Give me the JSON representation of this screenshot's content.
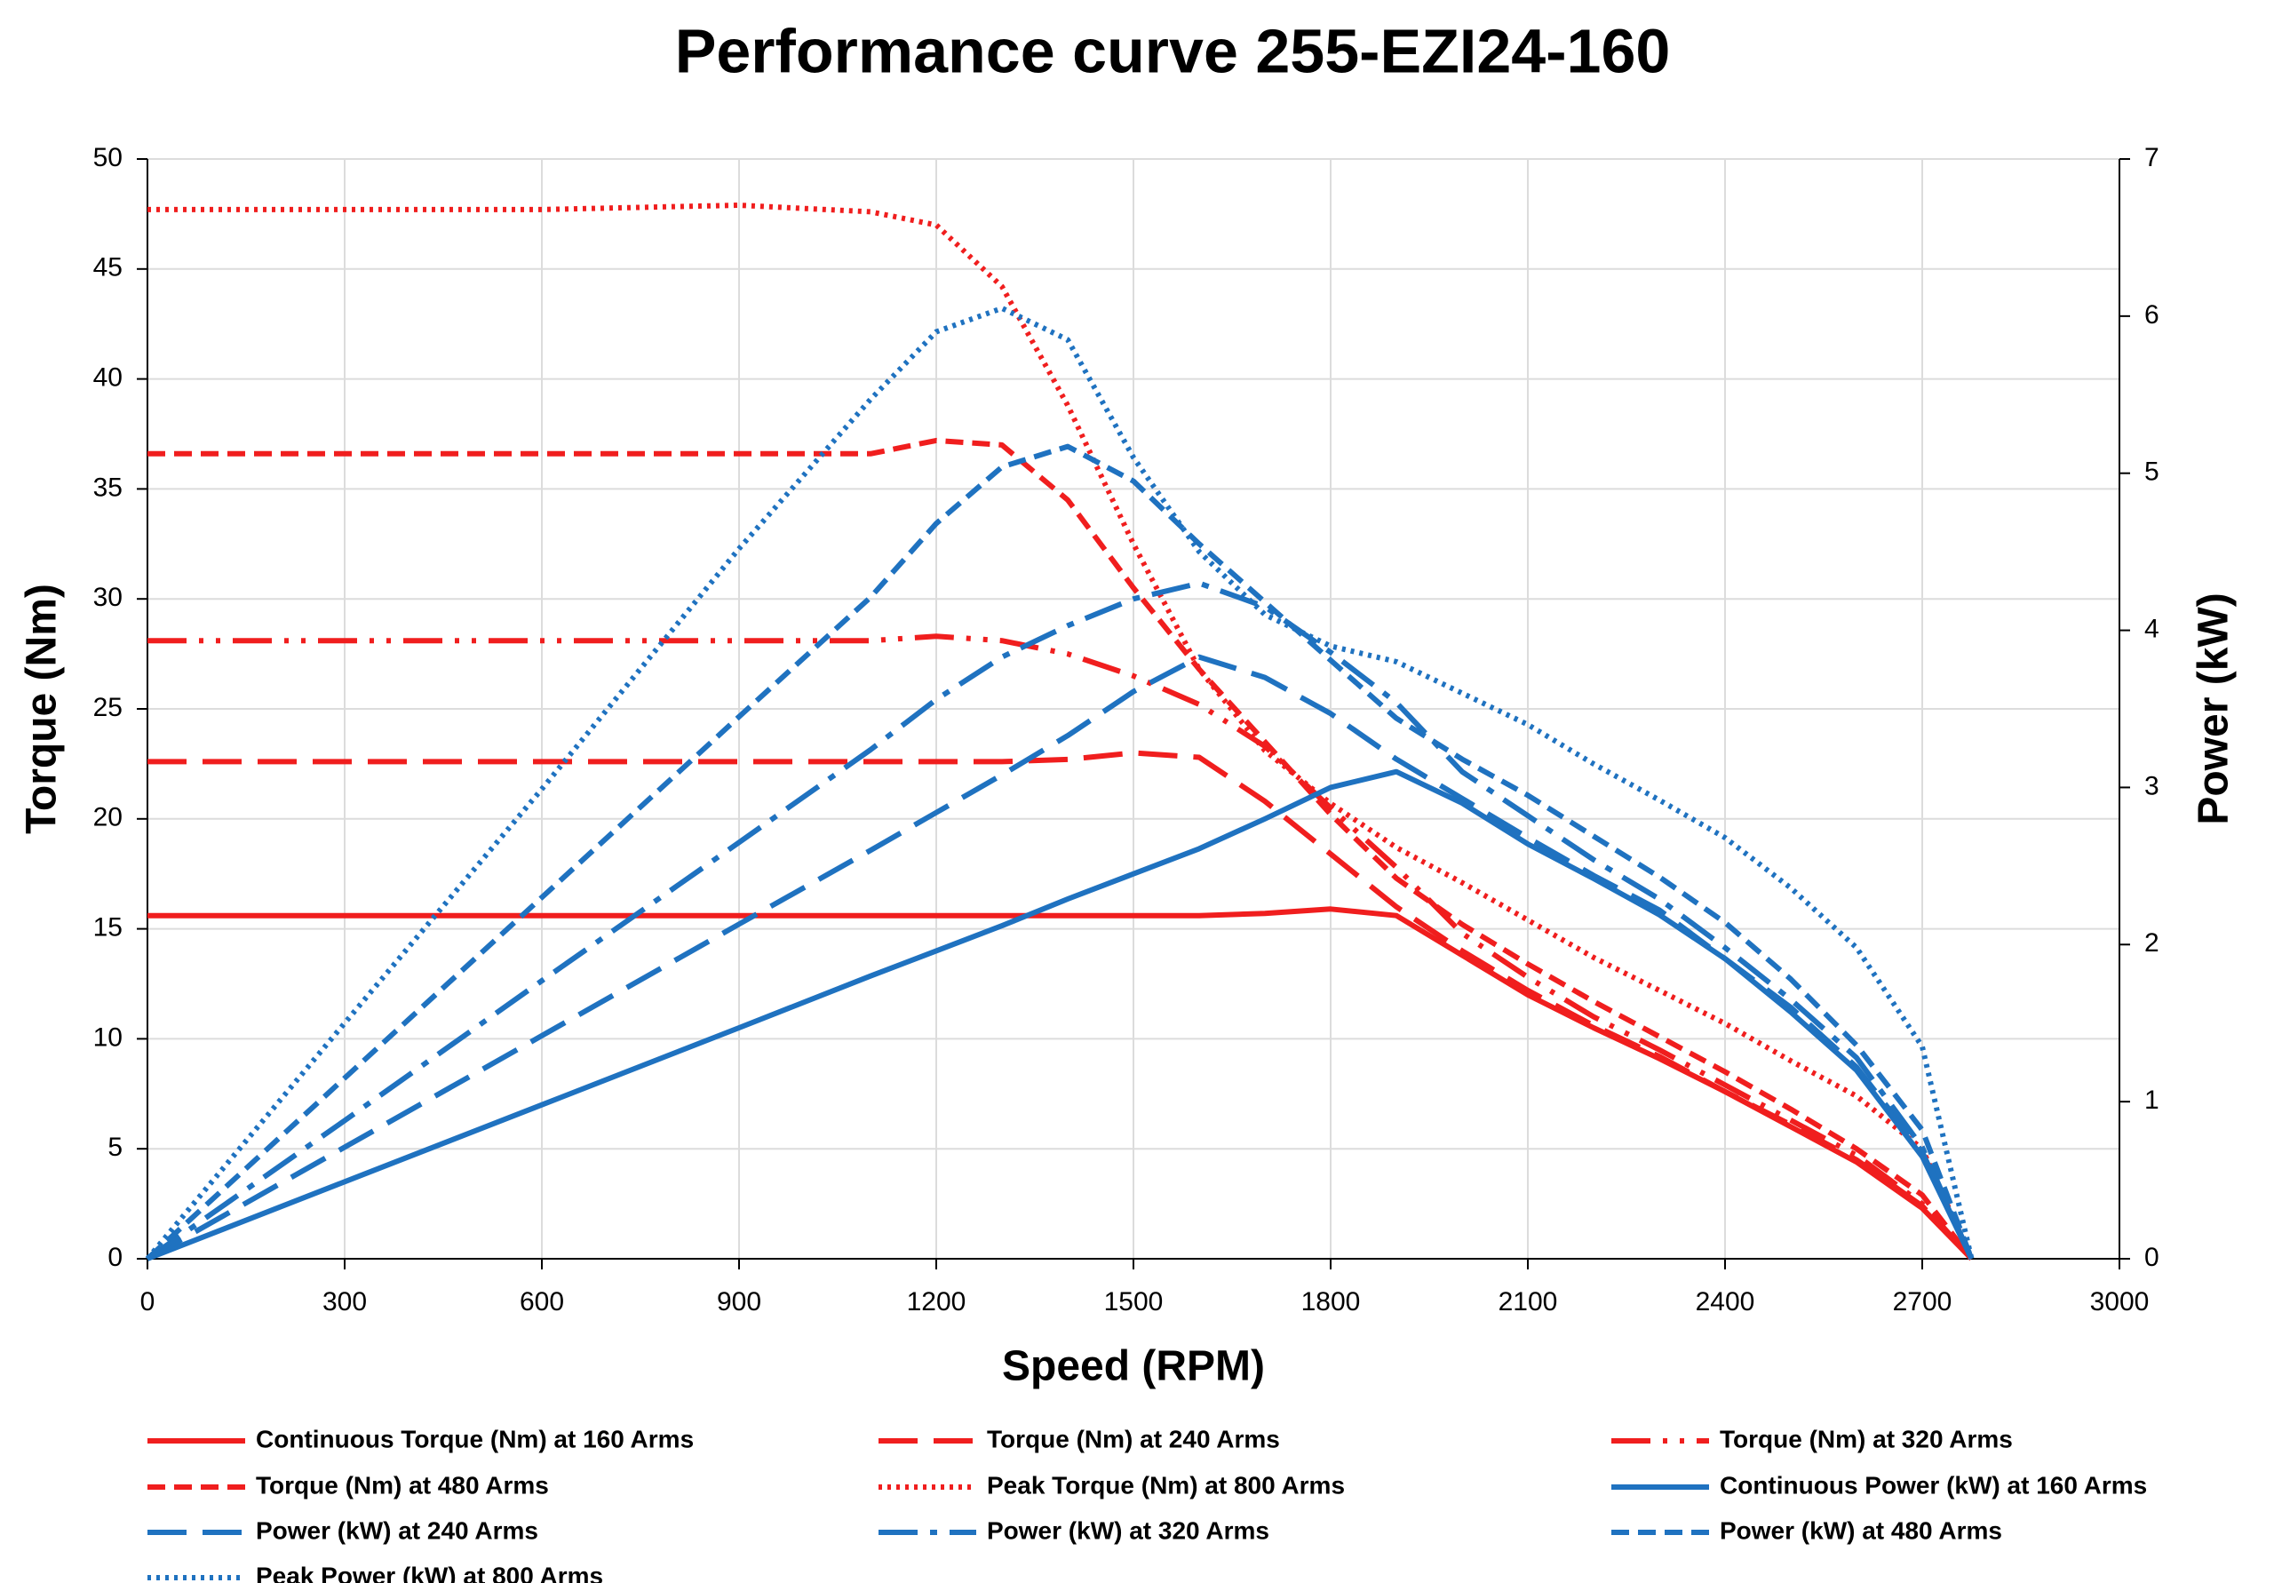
{
  "chart_data": {
    "type": "line",
    "title": "Performance curve 255-EZI24-160",
    "x_label": "Speed (RPM)",
    "y_label": "Torque (Nm)",
    "y2_label": "Power (kW)",
    "x": [
      0,
      300,
      600,
      900,
      1100,
      1200,
      1300,
      1400,
      1500,
      1600,
      1700,
      1800,
      1900,
      2000,
      2100,
      2200,
      2300,
      2400,
      2500,
      2600,
      2700,
      2775
    ],
    "xlim": [
      0,
      3000
    ],
    "xticks": [
      0,
      300,
      600,
      900,
      1200,
      1500,
      1800,
      2100,
      2400,
      2700,
      3000
    ],
    "ylim": [
      0,
      50
    ],
    "yticks": [
      0,
      5,
      10,
      15,
      20,
      25,
      30,
      35,
      40,
      45,
      50
    ],
    "y2lim": [
      0,
      7
    ],
    "y2ticks": [
      0,
      1,
      2,
      3,
      4,
      5,
      6,
      7
    ],
    "grid": true,
    "legend": "bottom",
    "series": [
      {
        "name": "Continuous Torque (Nm) at 160 Arms",
        "color": "#f01e1e",
        "dash": "solid",
        "values": [
          15.6,
          15.6,
          15.6,
          15.6,
          15.6,
          15.6,
          15.6,
          15.6,
          15.6,
          15.6,
          15.7,
          15.9,
          15.6,
          13.8,
          12,
          10.5,
          9.1,
          7.6,
          6.0,
          4.4,
          2.3,
          0
        ]
      },
      {
        "name": "Torque (Nm) at 240 Arms",
        "color": "#f01e1e",
        "dash": "long-dash",
        "values": [
          22.6,
          22.6,
          22.6,
          22.6,
          22.6,
          22.6,
          22.6,
          22.7,
          23.0,
          22.8,
          20.8,
          18.4,
          16.0,
          14.0,
          12.2,
          10.6,
          9.2,
          7.6,
          6.1,
          4.5,
          2.4,
          0
        ]
      },
      {
        "name": "Torque (Nm) at 320 Arms",
        "color": "#f01e1e",
        "dash": "dash-dot-dot",
        "values": [
          28.1,
          28.1,
          28.1,
          28.1,
          28.1,
          28.3,
          28.1,
          27.5,
          26.5,
          25.2,
          23.3,
          20.5,
          17.8,
          14.8,
          12.8,
          11.0,
          9.5,
          7.9,
          6.3,
          4.7,
          2.5,
          0
        ]
      },
      {
        "name": "Torque (Nm) at 480 Arms",
        "color": "#f01e1e",
        "dash": "dash",
        "values": [
          36.6,
          36.6,
          36.6,
          36.6,
          36.6,
          37.2,
          37.0,
          34.5,
          30.5,
          26.8,
          23.5,
          20.2,
          17.3,
          15.2,
          13.4,
          11.7,
          10.1,
          8.5,
          6.8,
          5.0,
          2.9,
          0
        ]
      },
      {
        "name": "Peak Torque (Nm) at 800 Arms",
        "color": "#f01e1e",
        "dash": "dot",
        "values": [
          47.7,
          47.7,
          47.7,
          47.9,
          47.6,
          47.0,
          44.2,
          38.8,
          32.5,
          26.8,
          23.1,
          20.7,
          18.7,
          17.1,
          15.4,
          13.7,
          12.2,
          10.7,
          9.0,
          7.4,
          5.0,
          0
        ]
      },
      {
        "name": "Continuous Power (kW) at 160 Arms",
        "color": "#1f72c0",
        "dash": "solid",
        "axis": "y2",
        "values": [
          0,
          0.49,
          0.98,
          1.47,
          1.8,
          1.96,
          2.12,
          2.29,
          2.45,
          2.61,
          2.8,
          3.0,
          3.1,
          2.9,
          2.64,
          2.42,
          2.19,
          1.91,
          1.57,
          1.2,
          0.65,
          0
        ]
      },
      {
        "name": "Power (kW) at 240 Arms",
        "color": "#1f72c0",
        "dash": "long-dash",
        "axis": "y2",
        "values": [
          0,
          0.71,
          1.42,
          2.13,
          2.6,
          2.84,
          3.08,
          3.33,
          3.61,
          3.83,
          3.7,
          3.47,
          3.18,
          2.93,
          2.68,
          2.44,
          2.22,
          1.91,
          1.6,
          1.22,
          0.68,
          0
        ]
      },
      {
        "name": "Power (kW) at 320 Arms",
        "color": "#1f72c0",
        "dash": "dash-dot",
        "axis": "y2",
        "values": [
          0,
          0.88,
          1.77,
          2.65,
          3.24,
          3.56,
          3.83,
          4.03,
          4.2,
          4.3,
          4.15,
          3.86,
          3.54,
          3.1,
          2.82,
          2.54,
          2.29,
          1.98,
          1.65,
          1.28,
          0.71,
          0
        ]
      },
      {
        "name": "Power (kW) at 480 Arms",
        "color": "#1f72c0",
        "dash": "dash",
        "axis": "y2",
        "values": [
          0,
          1.15,
          2.3,
          3.45,
          4.21,
          4.68,
          5.04,
          5.17,
          4.95,
          4.55,
          4.18,
          3.81,
          3.44,
          3.18,
          2.95,
          2.69,
          2.43,
          2.14,
          1.78,
          1.36,
          0.82,
          0
        ]
      },
      {
        "name": "Peak Power (kW) at 800 Arms",
        "color": "#1f72c0",
        "dash": "dot",
        "axis": "y2",
        "values": [
          0,
          1.5,
          2.99,
          4.52,
          5.47,
          5.9,
          6.05,
          5.85,
          5.1,
          4.5,
          4.1,
          3.9,
          3.8,
          3.6,
          3.4,
          3.15,
          2.92,
          2.68,
          2.36,
          1.98,
          1.35,
          0
        ]
      }
    ]
  }
}
